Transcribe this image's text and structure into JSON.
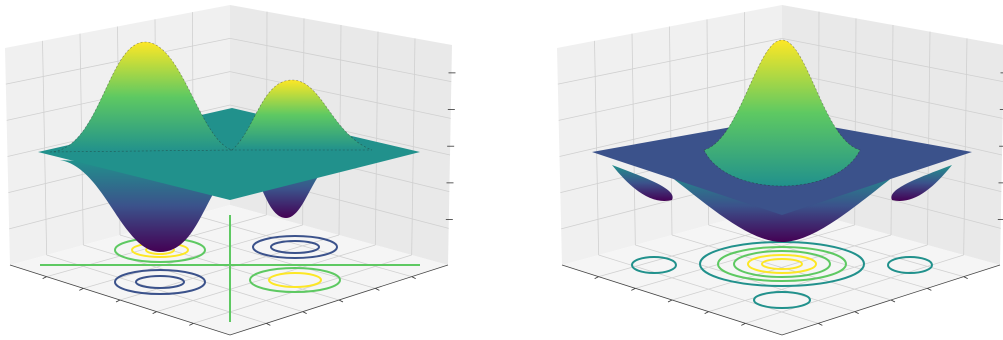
{
  "chart_data": [
    {
      "type": "surface",
      "colormap": "viridis",
      "contours": true
    },
    {
      "type": "surface",
      "colormap": "viridis",
      "contours": true
    }
  ]
}
